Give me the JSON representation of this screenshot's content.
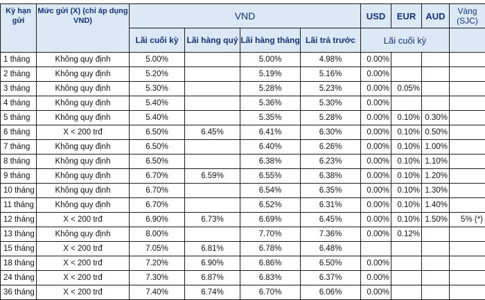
{
  "header": {
    "term": "Kỳ hạn gửi",
    "deposit": "Mức gửi (X) (chỉ áp dụng VND)",
    "vnd": "VND",
    "usd": "USD",
    "eur": "EUR",
    "aud": "AUD",
    "gold": "Vàng (SJC)",
    "vnd_end": "Lãi cuối kỳ",
    "vnd_quarterly": "Lãi hàng quý",
    "vnd_monthly": "Lãi hàng tháng",
    "vnd_prepaid": "Lãi trả trước",
    "fx_end": "Lãi cuối kỳ"
  },
  "rows": [
    {
      "term": "1 tháng",
      "deposit": "Không quy định",
      "end": "5.00%",
      "quarterly": "",
      "monthly": "5.00%",
      "prepaid": "4.98%",
      "usd": "0.00%",
      "eur": "",
      "aud": "",
      "gold": ""
    },
    {
      "term": "2 tháng",
      "deposit": "Không quy định",
      "end": "5.20%",
      "quarterly": "",
      "monthly": "5.19%",
      "prepaid": "5.16%",
      "usd": "0.00%",
      "eur": "",
      "aud": "",
      "gold": ""
    },
    {
      "term": "3 tháng",
      "deposit": "Không quy định",
      "end": "5.30%",
      "quarterly": "",
      "monthly": "5.28%",
      "prepaid": "5.23%",
      "usd": "0.00%",
      "eur": "0.05%",
      "aud": "",
      "gold": ""
    },
    {
      "term": "4 tháng",
      "deposit": "Không quy định",
      "end": "5.40%",
      "quarterly": "",
      "monthly": "5.36%",
      "prepaid": "5.30%",
      "usd": "0.00%",
      "eur": "",
      "aud": "",
      "gold": ""
    },
    {
      "term": "5 tháng",
      "deposit": "Không quy định",
      "end": "5.40%",
      "quarterly": "",
      "monthly": "5.35%",
      "prepaid": "5.28%",
      "usd": "0.00%",
      "eur": "0.10%",
      "aud": "0.30%",
      "gold": ""
    },
    {
      "term": "6 tháng",
      "deposit": "X < 200 trđ",
      "end": "6.50%",
      "quarterly": "6.45%",
      "monthly": "6.41%",
      "prepaid": "6.30%",
      "usd": "0.00%",
      "eur": "0.10%",
      "aud": "0.50%",
      "gold": ""
    },
    {
      "term": "7 tháng",
      "deposit": "Không quy định",
      "end": "6.50%",
      "quarterly": "",
      "monthly": "6.40%",
      "prepaid": "6.26%",
      "usd": "0.00%",
      "eur": "0.10%",
      "aud": "1.00%",
      "gold": ""
    },
    {
      "term": "8 tháng",
      "deposit": "Không quy định",
      "end": "6.50%",
      "quarterly": "",
      "monthly": "6.38%",
      "prepaid": "6.23%",
      "usd": "0.00%",
      "eur": "0.10%",
      "aud": "1.10%",
      "gold": ""
    },
    {
      "term": "9 tháng",
      "deposit": "Không quy định",
      "end": "6.70%",
      "quarterly": "6.59%",
      "monthly": "6.55%",
      "prepaid": "6.38%",
      "usd": "0.00%",
      "eur": "0.10%",
      "aud": "1.20%",
      "gold": ""
    },
    {
      "term": "10 tháng",
      "deposit": "Không quy định",
      "end": "6.70%",
      "quarterly": "",
      "monthly": "6.54%",
      "prepaid": "6.35%",
      "usd": "0.00%",
      "eur": "0.10%",
      "aud": "1.30%",
      "gold": ""
    },
    {
      "term": "11 tháng",
      "deposit": "Không quy định",
      "end": "6.70%",
      "quarterly": "",
      "monthly": "6.52%",
      "prepaid": "6.31%",
      "usd": "0.00%",
      "eur": "0.10%",
      "aud": "1.40%",
      "gold": ""
    },
    {
      "term": "12 tháng",
      "deposit": "X < 200 trđ",
      "end": "6.90%",
      "quarterly": "6.73%",
      "monthly": "6.69%",
      "prepaid": "6.45%",
      "usd": "0.00%",
      "eur": "0.10%",
      "aud": "1.50%",
      "gold": "5% (*)"
    },
    {
      "term": "13 tháng",
      "deposit": "Không quy định",
      "end": "8.00%",
      "quarterly": "",
      "monthly": "7.70%",
      "prepaid": "7.36%",
      "usd": "0.00%",
      "eur": "0.12%",
      "aud": "",
      "gold": ""
    },
    {
      "term": "15 tháng",
      "deposit": "X < 200 trđ",
      "end": "7.05%",
      "quarterly": "6.81%",
      "monthly": "6.78%",
      "prepaid": "6.48%",
      "usd": "",
      "eur": "",
      "aud": "",
      "gold": ""
    },
    {
      "term": "18 tháng",
      "deposit": "X < 200 trđ",
      "end": "7.20%",
      "quarterly": "6.90%",
      "monthly": "6.86%",
      "prepaid": "6.50%",
      "usd": "0.00%",
      "eur": "",
      "aud": "",
      "gold": ""
    },
    {
      "term": "24 tháng",
      "deposit": "X < 200 trđ",
      "end": "7.30%",
      "quarterly": "6.87%",
      "monthly": "6.83%",
      "prepaid": "6.37%",
      "usd": "0.00%",
      "eur": "",
      "aud": "",
      "gold": ""
    },
    {
      "term": "36  tháng",
      "deposit": "X < 200 trđ",
      "end": "7.40%",
      "quarterly": "6.74%",
      "monthly": "6.70%",
      "prepaid": "6.06%",
      "usd": "0.00%",
      "eur": "",
      "aud": "",
      "gold": ""
    }
  ]
}
